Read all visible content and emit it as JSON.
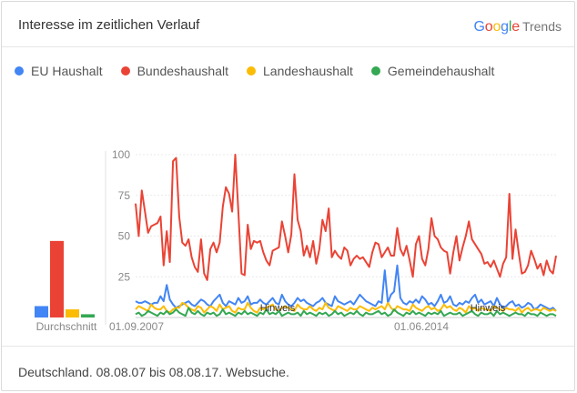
{
  "header": {
    "title": "Interesse im zeitlichen Verlauf",
    "brand_google": "Google",
    "brand_trends": "Trends"
  },
  "footer": {
    "text": "Deutschland. 08.08.07 bis 08.08.17. Websuche."
  },
  "chart_data": {
    "type": "line",
    "title": "Interesse im zeitlichen Verlauf",
    "xlabel": "",
    "ylabel": "",
    "ylim": [
      0,
      100
    ],
    "yticks": [
      25,
      50,
      75,
      100
    ],
    "x_tick_labels": [
      "01.09.2007",
      "01.06.2014"
    ],
    "average_label": "Durchschnitt",
    "note_label": "Hinweis",
    "colors": {
      "EU Haushalt": "#4285F4",
      "Bundeshaushalt": "#EA4335",
      "Landeshaushalt": "#FBBC05",
      "Gemeindehaushalt": "#34A853"
    },
    "averages": [
      {
        "name": "EU Haushalt",
        "value": 7
      },
      {
        "name": "Bundeshaushalt",
        "value": 47
      },
      {
        "name": "Landeshaushalt",
        "value": 5
      },
      {
        "name": "Gemeindehaushalt",
        "value": 2
      }
    ],
    "series": [
      {
        "name": "EU Haushalt",
        "values": [
          10,
          9,
          9,
          10,
          9,
          8,
          9,
          9,
          13,
          10,
          20,
          11,
          8,
          6,
          7,
          8,
          9,
          10,
          8,
          7,
          9,
          11,
          10,
          8,
          7,
          10,
          12,
          14,
          9,
          7,
          10,
          9,
          8,
          12,
          9,
          10,
          13,
          8,
          9,
          9,
          11,
          9,
          8,
          10,
          12,
          9,
          8,
          14,
          10,
          8,
          7,
          9,
          12,
          10,
          11,
          9,
          8,
          7,
          9,
          10,
          12,
          9,
          8,
          7,
          13,
          10,
          9,
          8,
          9,
          10,
          8,
          11,
          14,
          12,
          10,
          9,
          8,
          7,
          10,
          9,
          29,
          9,
          14,
          16,
          32,
          12,
          9,
          8,
          10,
          9,
          11,
          9,
          13,
          11,
          8,
          9,
          7,
          10,
          14,
          9,
          10,
          13,
          8,
          7,
          9,
          8,
          10,
          9,
          12,
          14,
          9,
          11,
          8,
          9,
          10,
          7,
          12,
          8,
          6,
          7,
          9,
          10,
          7,
          8,
          6,
          7,
          9,
          8,
          5,
          6,
          8,
          7,
          6,
          5,
          6,
          4
        ]
      },
      {
        "name": "Bundeshaushalt",
        "values": [
          70,
          50,
          78,
          65,
          52,
          56,
          57,
          58,
          62,
          32,
          53,
          34,
          96,
          98,
          62,
          46,
          44,
          48,
          37,
          31,
          28,
          48,
          27,
          23,
          42,
          46,
          40,
          46,
          68,
          80,
          76,
          65,
          100,
          65,
          27,
          26,
          57,
          42,
          47,
          46,
          47,
          40,
          35,
          32,
          41,
          42,
          43,
          59,
          50,
          40,
          51,
          88,
          60,
          53,
          38,
          44,
          37,
          47,
          33,
          42,
          60,
          53,
          67,
          37,
          41,
          38,
          36,
          43,
          41,
          32,
          36,
          38,
          36,
          37,
          34,
          31,
          40,
          46,
          45,
          37,
          40,
          43,
          38,
          38,
          55,
          42,
          38,
          44,
          35,
          25,
          45,
          50,
          36,
          32,
          42,
          61,
          50,
          48,
          43,
          41,
          40,
          27,
          40,
          50,
          35,
          43,
          50,
          59,
          48,
          45,
          42,
          39,
          33,
          34,
          31,
          35,
          30,
          25,
          33,
          37,
          76,
          36,
          54,
          40,
          27,
          28,
          32,
          41,
          36,
          30,
          33,
          26,
          35,
          29,
          27,
          38
        ]
      },
      {
        "name": "Landeshaushalt",
        "values": [
          5,
          7,
          6,
          5,
          4,
          8,
          6,
          5,
          5,
          7,
          4,
          3,
          5,
          6,
          6,
          9,
          8,
          6,
          5,
          4,
          7,
          6,
          3,
          5,
          7,
          6,
          4,
          8,
          5,
          6,
          7,
          4,
          3,
          6,
          5,
          5,
          9,
          6,
          4,
          3,
          6,
          5,
          6,
          7,
          8,
          5,
          4,
          6,
          7,
          6,
          5,
          4,
          8,
          6,
          5,
          5,
          7,
          5,
          4,
          6,
          5,
          9,
          6,
          5,
          4,
          7,
          6,
          5,
          4,
          6,
          5,
          5,
          7,
          6,
          5,
          4,
          6,
          5,
          6,
          7,
          5,
          9,
          6,
          4,
          7,
          6,
          5,
          5,
          4,
          8,
          6,
          5,
          4,
          6,
          7,
          5,
          6,
          4,
          5,
          8,
          6,
          7,
          5,
          4,
          6,
          5,
          3,
          7,
          5,
          6,
          4,
          6,
          5,
          5,
          4,
          7,
          6,
          5,
          4,
          6,
          5,
          5,
          4,
          6,
          3,
          5,
          6,
          4,
          5,
          5,
          4,
          6,
          5,
          4,
          5,
          4
        ]
      },
      {
        "name": "Gemeindehaushalt",
        "values": [
          2,
          3,
          1,
          2,
          4,
          3,
          2,
          1,
          3,
          2,
          4,
          2,
          3,
          5,
          3,
          2,
          1,
          6,
          3,
          2,
          4,
          2,
          1,
          3,
          2,
          3,
          1,
          2,
          5,
          2,
          3,
          2,
          1,
          3,
          2,
          4,
          2,
          3,
          2,
          1,
          3,
          2,
          5,
          2,
          3,
          2,
          4,
          1,
          2,
          3,
          2,
          2,
          3,
          1,
          4,
          2,
          3,
          2,
          1,
          3,
          2,
          3,
          1,
          2,
          4,
          2,
          3,
          1,
          2,
          3,
          2,
          4,
          2,
          1,
          3,
          2,
          2,
          3,
          4,
          2,
          3,
          1,
          2,
          5,
          3,
          2,
          1,
          3,
          2,
          4,
          2,
          3,
          2,
          1,
          3,
          2,
          3,
          2,
          4,
          1,
          2,
          3,
          2,
          2,
          3,
          1,
          2,
          3,
          4,
          2,
          1,
          3,
          2,
          2,
          3,
          1,
          4,
          2,
          3,
          2,
          1,
          2,
          3,
          2,
          2,
          1,
          3,
          2,
          2,
          1,
          3,
          2,
          1,
          2,
          2,
          1
        ]
      }
    ]
  }
}
